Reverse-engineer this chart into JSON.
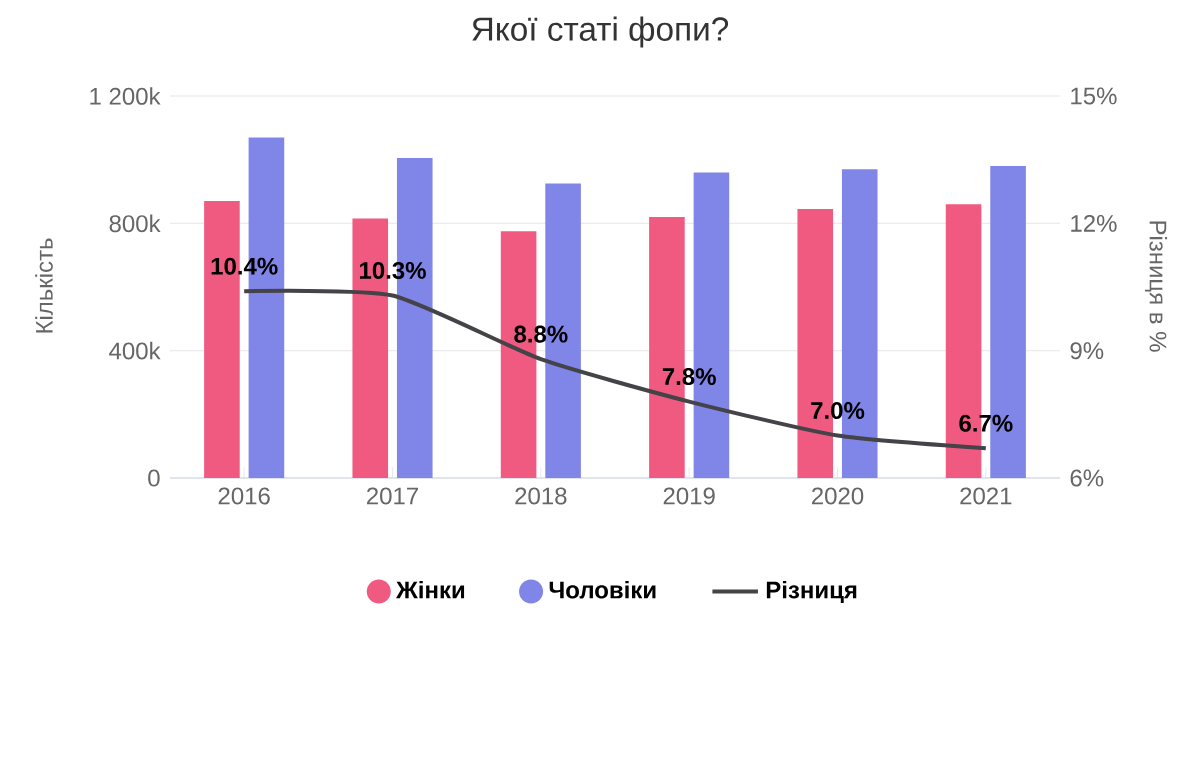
{
  "chart_data": {
    "type": "bar",
    "title": "Якої статі фопи?",
    "categories": [
      "2016",
      "2017",
      "2018",
      "2019",
      "2020",
      "2021"
    ],
    "series": [
      {
        "name": "Жінки",
        "color": "#f05a80",
        "values": [
          870000,
          815000,
          775000,
          820000,
          845000,
          860000
        ]
      },
      {
        "name": "Чоловіки",
        "color": "#8085e8",
        "values": [
          1070000,
          1005000,
          925000,
          960000,
          970000,
          980000
        ]
      },
      {
        "name": "Різниця",
        "type": "line",
        "axis": "y2",
        "color": "#434348",
        "values": [
          10.4,
          10.3,
          8.8,
          7.8,
          7.0,
          6.7
        ],
        "value_labels": [
          "10.4%",
          "10.3%",
          "8.8%",
          "7.8%",
          "7.0%",
          "6.7%"
        ]
      }
    ],
    "ylabel": "Кількість",
    "y2label": "Різниця в %",
    "ylim": [
      0,
      1200000
    ],
    "yticks": [
      {
        "value": 0,
        "label": "0"
      },
      {
        "value": 400000,
        "label": "400k"
      },
      {
        "value": 800000,
        "label": "800k"
      },
      {
        "value": 1200000,
        "label": "1 200k"
      }
    ],
    "y2lim": [
      6,
      15
    ],
    "y2ticks": [
      {
        "value": 6,
        "label": "6%"
      },
      {
        "value": 9,
        "label": "9%"
      },
      {
        "value": 12,
        "label": "12%"
      },
      {
        "value": 15,
        "label": "15%"
      }
    ],
    "grid": "y",
    "legend": "bottom",
    "marker": "none",
    "line_style": "solid"
  }
}
